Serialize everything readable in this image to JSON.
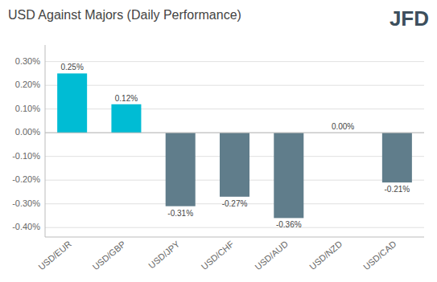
{
  "chart_data": {
    "type": "bar",
    "title": "USD Against Majors (Daily Performance)",
    "annotations": [
      "JFD"
    ],
    "categories": [
      "USD/EUR",
      "USD/GBP",
      "USD/JPY",
      "USD/CHF",
      "USD/AUD",
      "USD/NZD",
      "USD/CAD"
    ],
    "values": [
      0.25,
      0.12,
      -0.31,
      -0.27,
      -0.36,
      0.0,
      -0.21
    ],
    "value_labels": [
      "0.25%",
      "0.12%",
      "-0.31%",
      "-0.27%",
      "-0.36%",
      "0.00%",
      "-0.21%"
    ],
    "colors": [
      "#00bcd4",
      "#00bcd4",
      "#607d8b",
      "#607d8b",
      "#607d8b",
      "#607d8b",
      "#607d8b"
    ],
    "ylim": [
      -0.44,
      0.37
    ],
    "yticks": [
      {
        "value": -0.4,
        "label": "-0.40%"
      },
      {
        "value": -0.3,
        "label": "-0.30%"
      },
      {
        "value": -0.2,
        "label": "-0.20%"
      },
      {
        "value": -0.1,
        "label": "-0.10%"
      },
      {
        "value": 0.0,
        "label": "0.00%"
      },
      {
        "value": 0.1,
        "label": "0.10%"
      },
      {
        "value": 0.2,
        "label": "0.20%"
      },
      {
        "value": 0.3,
        "label": "0.30%"
      }
    ],
    "grid": true,
    "data_labels": true
  }
}
